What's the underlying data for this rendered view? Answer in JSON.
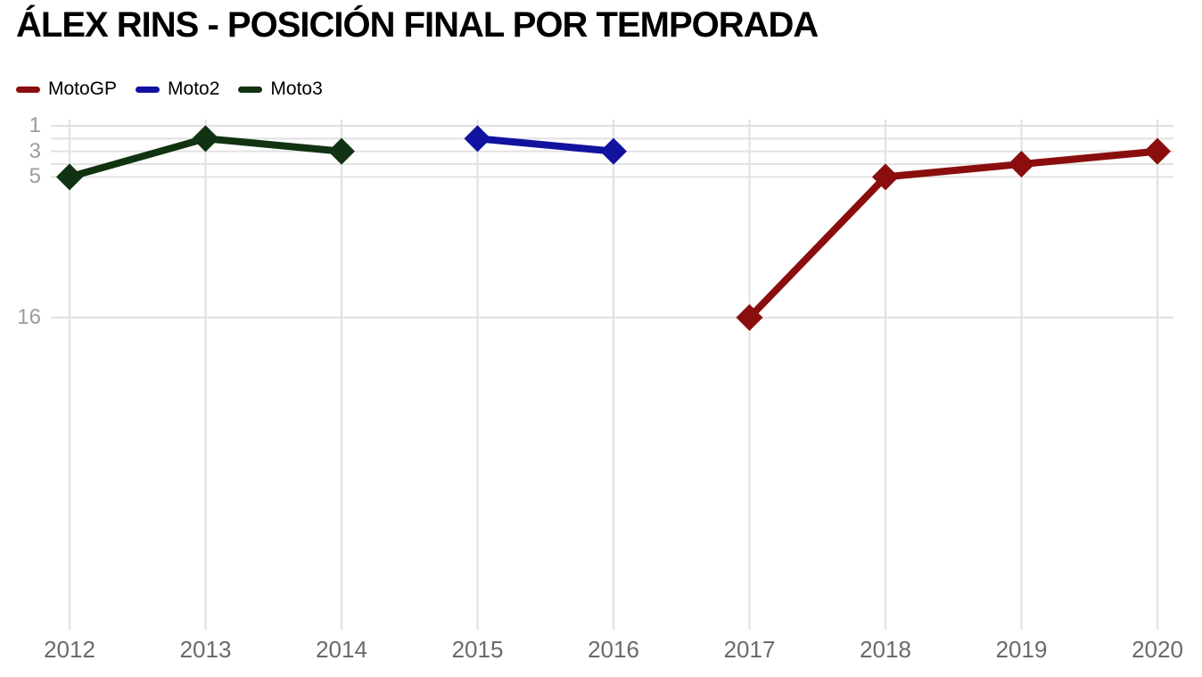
{
  "title": "ÁLEX RINS - POSICIÓN FINAL POR TEMPORADA",
  "legend": {
    "items": [
      {
        "label": "MotoGP",
        "color": "#8B0E0E"
      },
      {
        "label": "Moto2",
        "color": "#1212A0"
      },
      {
        "label": "Moto3",
        "color": "#113311"
      }
    ]
  },
  "chart_data": {
    "type": "line",
    "title": "ÁLEX RINS - POSICIÓN FINAL POR TEMPORADA",
    "xlabel": "",
    "ylabel": "",
    "marker": "diamond",
    "line_width": 8,
    "grid_color": "#e1e1e1",
    "label_color_y": "#9c9c9c",
    "label_color_x": "#6a6a6a",
    "x_axis": {
      "tick_labels": [
        2012,
        2013,
        2014,
        2015,
        2016,
        2017,
        2018,
        2019,
        2020
      ]
    },
    "y_axis": {
      "inverted": true,
      "range": [
        1,
        16
      ],
      "tick_labels": [
        1,
        3,
        5,
        16
      ],
      "gridlines": [
        1,
        2,
        3,
        4,
        5,
        16
      ]
    },
    "legend_position": "top-left",
    "series": [
      {
        "name": "MotoGP",
        "color": "#8B0E0E",
        "points": [
          {
            "x": 2017,
            "y": 16
          },
          {
            "x": 2018,
            "y": 5
          },
          {
            "x": 2019,
            "y": 4
          },
          {
            "x": 2020,
            "y": 3
          }
        ]
      },
      {
        "name": "Moto2",
        "color": "#1212A0",
        "points": [
          {
            "x": 2015,
            "y": 2
          },
          {
            "x": 2016,
            "y": 3
          }
        ]
      },
      {
        "name": "Moto3",
        "color": "#113311",
        "points": [
          {
            "x": 2012,
            "y": 5
          },
          {
            "x": 2013,
            "y": 2
          },
          {
            "x": 2014,
            "y": 3
          }
        ]
      }
    ]
  }
}
